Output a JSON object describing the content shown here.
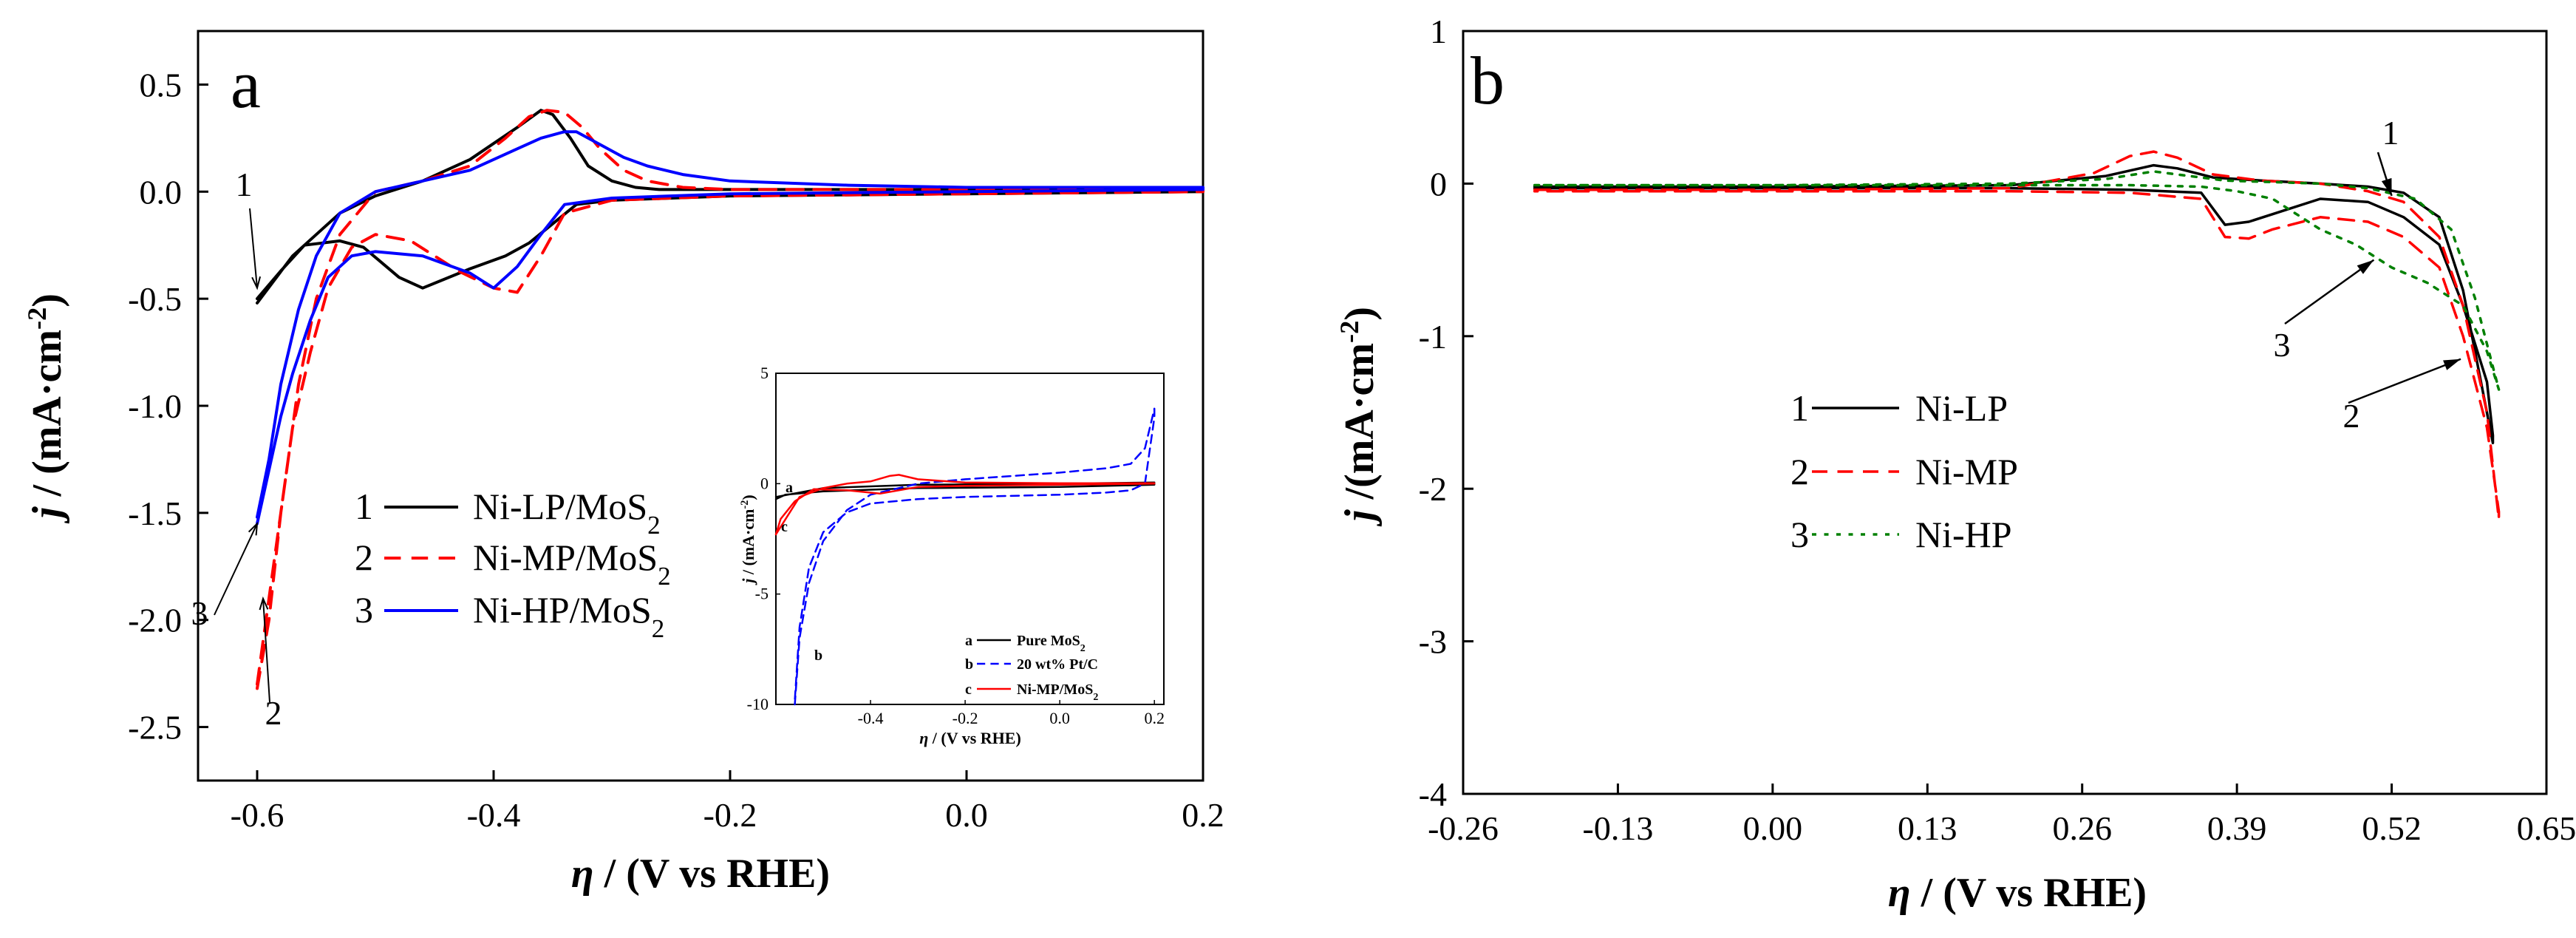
{
  "chart_data": [
    {
      "panel": "a",
      "type": "line",
      "xlabel": "η / (V vs RHE)",
      "ylabel": "j / (mA·cm⁻²)",
      "xlim": [
        -0.65,
        0.2
      ],
      "ylim": [
        -2.75,
        0.75
      ],
      "xticks": [
        -0.6,
        -0.4,
        -0.2,
        0.0,
        0.2
      ],
      "xtick_labels": [
        "-0.6",
        "-0.4",
        "-0.2",
        "0.0",
        "0.2"
      ],
      "yticks": [
        0.5,
        0.0,
        -0.5,
        -1.0,
        -1.5,
        -2.0,
        -2.5
      ],
      "ytick_labels": [
        "0.5",
        "0.0",
        "-0.5",
        "-1.0",
        "-1.5",
        "-2.0",
        "-2.5"
      ],
      "legend_position": "lower-center-left",
      "series": [
        {
          "num": "1",
          "name": "Ni-LP/MoS",
          "sub": "2",
          "color": "#000000",
          "dash": "solid",
          "x": [
            -0.6,
            -0.57,
            -0.53,
            -0.5,
            -0.46,
            -0.42,
            -0.38,
            -0.36,
            -0.35,
            -0.335,
            -0.32,
            -0.3,
            -0.28,
            -0.26,
            -0.22,
            -0.15,
            0.0,
            0.2,
            0.2,
            0.0,
            -0.2,
            -0.3,
            -0.33,
            -0.35,
            -0.37,
            -0.39,
            -0.42,
            -0.46,
            -0.48,
            -0.51,
            -0.53,
            -0.56,
            -0.58,
            -0.6
          ],
          "y": [
            -0.52,
            -0.3,
            -0.1,
            -0.02,
            0.05,
            0.15,
            0.3,
            0.38,
            0.36,
            0.25,
            0.12,
            0.05,
            0.02,
            0.01,
            0.01,
            0.01,
            0.01,
            0.01,
            0.0,
            -0.01,
            -0.02,
            -0.04,
            -0.06,
            -0.15,
            -0.24,
            -0.3,
            -0.36,
            -0.45,
            -0.4,
            -0.26,
            -0.23,
            -0.25,
            -0.37,
            -0.5
          ]
        },
        {
          "num": "2",
          "name": "Ni-MP/MoS",
          "sub": "2",
          "color": "#ff0000",
          "dash": "dashed",
          "x": [
            -0.6,
            -0.59,
            -0.58,
            -0.565,
            -0.55,
            -0.53,
            -0.5,
            -0.46,
            -0.42,
            -0.39,
            -0.37,
            -0.355,
            -0.34,
            -0.325,
            -0.31,
            -0.29,
            -0.27,
            -0.24,
            -0.2,
            0.0,
            0.2,
            0.2,
            0.0,
            -0.2,
            -0.3,
            -0.34,
            -0.36,
            -0.38,
            -0.4,
            -0.43,
            -0.47,
            -0.5,
            -0.52,
            -0.54,
            -0.555,
            -0.57,
            -0.58,
            -0.59,
            -0.6
          ],
          "y": [
            -2.32,
            -2.0,
            -1.5,
            -0.9,
            -0.5,
            -0.2,
            0.0,
            0.05,
            0.12,
            0.25,
            0.35,
            0.38,
            0.37,
            0.3,
            0.2,
            0.1,
            0.05,
            0.02,
            0.01,
            0.01,
            0.01,
            0.0,
            -0.01,
            -0.02,
            -0.04,
            -0.1,
            -0.3,
            -0.47,
            -0.45,
            -0.37,
            -0.23,
            -0.2,
            -0.26,
            -0.45,
            -0.75,
            -1.1,
            -1.5,
            -1.9,
            -2.3
          ]
        },
        {
          "num": "3",
          "name": "Ni-HP/MoS",
          "sub": "2",
          "color": "#0000ff",
          "dash": "solid",
          "x": [
            -0.6,
            -0.59,
            -0.58,
            -0.565,
            -0.55,
            -0.53,
            -0.5,
            -0.46,
            -0.42,
            -0.38,
            -0.36,
            -0.34,
            -0.33,
            -0.31,
            -0.29,
            -0.27,
            -0.24,
            -0.2,
            -0.1,
            0.0,
            0.2,
            0.2,
            0.0,
            -0.2,
            -0.3,
            -0.34,
            -0.36,
            -0.38,
            -0.4,
            -0.42,
            -0.46,
            -0.5,
            -0.52,
            -0.54,
            -0.555,
            -0.57,
            -0.58,
            -0.59,
            -0.6
          ],
          "y": [
            -1.52,
            -1.25,
            -0.9,
            -0.55,
            -0.3,
            -0.1,
            0.0,
            0.05,
            0.1,
            0.2,
            0.25,
            0.28,
            0.28,
            0.22,
            0.16,
            0.12,
            0.08,
            0.05,
            0.03,
            0.02,
            0.02,
            0.01,
            0.0,
            -0.01,
            -0.03,
            -0.06,
            -0.2,
            -0.35,
            -0.45,
            -0.38,
            -0.3,
            -0.28,
            -0.3,
            -0.4,
            -0.6,
            -0.85,
            -1.05,
            -1.3,
            -1.55
          ]
        }
      ],
      "annotations": [
        {
          "label": "1",
          "target": [
            -0.6,
            -0.45
          ]
        },
        {
          "label": "2",
          "target": [
            -0.595,
            -1.9
          ]
        },
        {
          "label": "3",
          "target": [
            -0.6,
            -1.55
          ]
        }
      ],
      "inset": {
        "type": "line",
        "xlabel": "η / (V vs RHE)",
        "ylabel": "j / (mA·cm⁻²)",
        "xlim": [
          -0.6,
          0.22
        ],
        "ylim": [
          -10,
          5
        ],
        "xticks": [
          -0.4,
          -0.2,
          0.0,
          0.2
        ],
        "xtick_labels": [
          "-0.4",
          "-0.2",
          "0.0",
          "0.2"
        ],
        "yticks": [
          5,
          0,
          -5,
          -10
        ],
        "ytick_labels": [
          "5",
          "0",
          "-5",
          "-10"
        ],
        "series": [
          {
            "letter": "a",
            "name": "Pure MoS",
            "sub": "2",
            "color": "#000000",
            "dash": "solid",
            "x": [
              -0.6,
              -0.5,
              -0.3,
              0.0,
              0.2,
              0.2,
              0.0,
              -0.3,
              -0.5,
              -0.58,
              -0.6
            ],
            "y": [
              -0.6,
              -0.2,
              -0.05,
              0.0,
              0.05,
              -0.05,
              -0.15,
              -0.2,
              -0.35,
              -0.5,
              -0.7
            ]
          },
          {
            "letter": "b",
            "name": "20 wt% Pt/C",
            "sub": "",
            "color": "#0000ff",
            "dash": "dashed",
            "x": [
              -0.56,
              -0.55,
              -0.53,
              -0.5,
              -0.45,
              -0.4,
              -0.3,
              -0.2,
              0.0,
              0.1,
              0.15,
              0.18,
              0.2,
              0.2,
              0.18,
              0.15,
              0.1,
              0.0,
              -0.2,
              -0.3,
              -0.4,
              -0.45,
              -0.5,
              -0.53,
              -0.55,
              -0.56
            ],
            "y": [
              -10.0,
              -7.0,
              -4.5,
              -2.6,
              -1.2,
              -0.5,
              0.0,
              0.2,
              0.5,
              0.7,
              0.9,
              1.6,
              3.4,
              3.0,
              0.0,
              -0.3,
              -0.4,
              -0.5,
              -0.6,
              -0.7,
              -0.9,
              -1.3,
              -2.2,
              -3.8,
              -6.5,
              -9.8
            ]
          },
          {
            "letter": "c",
            "name": "Ni-MP/MoS",
            "sub": "2",
            "color": "#ff0000",
            "dash": "solid",
            "x": [
              -0.6,
              -0.55,
              -0.5,
              -0.45,
              -0.4,
              -0.36,
              -0.34,
              -0.3,
              -0.2,
              0.0,
              0.2,
              0.2,
              0.0,
              -0.2,
              -0.3,
              -0.38,
              -0.45,
              -0.52,
              -0.56,
              -0.59,
              -0.6
            ],
            "y": [
              -2.3,
              -0.6,
              -0.2,
              0.0,
              0.1,
              0.35,
              0.4,
              0.2,
              0.05,
              0.02,
              0.02,
              0.0,
              -0.05,
              -0.1,
              -0.15,
              -0.45,
              -0.3,
              -0.25,
              -0.8,
              -1.6,
              -2.3
            ]
          }
        ]
      }
    },
    {
      "panel": "b",
      "type": "line",
      "xlabel": "η / (V vs RHE)",
      "ylabel": "j /(mA·cm⁻²)",
      "xlim": [
        -0.26,
        0.65
      ],
      "ylim": [
        -4,
        1
      ],
      "xticks": [
        -0.26,
        -0.13,
        0.0,
        0.13,
        0.26,
        0.39,
        0.52,
        0.65
      ],
      "xtick_labels": [
        "-0.26",
        "-0.13",
        "0.00",
        "0.13",
        "0.26",
        "0.39",
        "0.52",
        "0.65"
      ],
      "yticks": [
        1,
        0,
        -1,
        -2,
        -3,
        -4
      ],
      "ytick_labels": [
        "1",
        "0",
        "-1",
        "-2",
        "-3",
        "-4"
      ],
      "legend_position": "center-left",
      "series": [
        {
          "num": "1",
          "name": "Ni-LP",
          "color": "#000000",
          "dash": "solid",
          "x": [
            -0.2,
            0.0,
            0.2,
            0.28,
            0.32,
            0.34,
            0.37,
            0.41,
            0.46,
            0.5,
            0.53,
            0.56,
            0.58,
            0.595,
            0.605,
            0.605,
            0.6,
            0.58,
            0.56,
            0.53,
            0.5,
            0.46,
            0.42,
            0.4,
            0.38,
            0.36,
            0.3,
            0.2,
            0.0,
            -0.2
          ],
          "y": [
            -0.02,
            -0.02,
            -0.01,
            0.05,
            0.12,
            0.1,
            0.04,
            0.02,
            0.0,
            -0.02,
            -0.06,
            -0.22,
            -0.7,
            -1.3,
            -1.7,
            -1.65,
            -1.3,
            -0.8,
            -0.4,
            -0.22,
            -0.12,
            -0.1,
            -0.2,
            -0.25,
            -0.27,
            -0.06,
            -0.04,
            -0.03,
            -0.03,
            -0.03
          ]
        },
        {
          "num": "2",
          "name": "Ni-MP",
          "color": "#ff0000",
          "dash": "dashed",
          "x": [
            -0.2,
            0.0,
            0.2,
            0.27,
            0.3,
            0.32,
            0.34,
            0.37,
            0.41,
            0.46,
            0.5,
            0.53,
            0.56,
            0.58,
            0.6,
            0.61,
            0.61,
            0.6,
            0.58,
            0.56,
            0.53,
            0.5,
            0.46,
            0.42,
            0.4,
            0.38,
            0.36,
            0.3,
            0.2,
            0.0,
            -0.2
          ],
          "y": [
            -0.04,
            -0.04,
            -0.03,
            0.07,
            0.18,
            0.21,
            0.17,
            0.06,
            0.02,
            0.0,
            -0.05,
            -0.12,
            -0.35,
            -0.8,
            -1.5,
            -2.2,
            -2.15,
            -1.6,
            -1.0,
            -0.55,
            -0.35,
            -0.25,
            -0.22,
            -0.3,
            -0.36,
            -0.35,
            -0.1,
            -0.06,
            -0.05,
            -0.05,
            -0.05
          ]
        },
        {
          "num": "3",
          "name": "Ni-HP",
          "color": "#008000",
          "dash": "dotted",
          "x": [
            -0.2,
            0.0,
            0.2,
            0.28,
            0.32,
            0.35,
            0.38,
            0.42,
            0.46,
            0.5,
            0.54,
            0.57,
            0.59,
            0.605,
            0.61,
            0.6,
            0.58,
            0.55,
            0.52,
            0.49,
            0.46,
            0.42,
            0.39,
            0.36,
            0.3,
            0.2,
            0.0,
            -0.2
          ],
          "y": [
            -0.01,
            -0.01,
            0.0,
            0.03,
            0.08,
            0.05,
            0.02,
            0.01,
            0.0,
            -0.03,
            -0.1,
            -0.3,
            -0.75,
            -1.2,
            -1.35,
            -1.1,
            -0.8,
            -0.65,
            -0.55,
            -0.4,
            -0.3,
            -0.1,
            -0.05,
            -0.02,
            -0.01,
            -0.01,
            -0.01,
            -0.01
          ]
        }
      ],
      "annotations": [
        {
          "label": "1",
          "target": [
            0.52,
            -0.08
          ]
        },
        {
          "label": "2",
          "target": [
            0.578,
            -1.15
          ]
        },
        {
          "label": "3",
          "target": [
            0.505,
            -0.5
          ]
        }
      ]
    }
  ]
}
